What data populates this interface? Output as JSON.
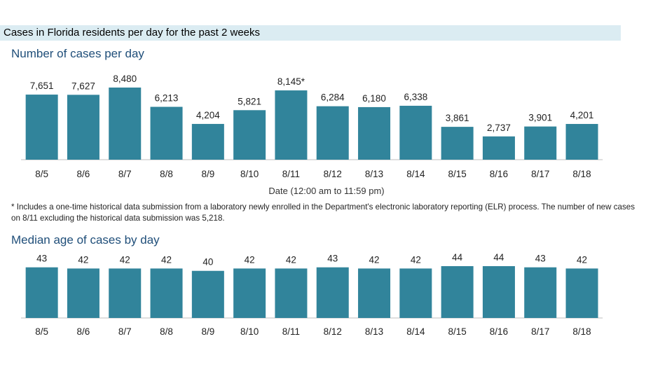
{
  "header": {
    "title": "Cases in Florida residents per day for the past 2 weeks"
  },
  "colors": {
    "bar": "#31849b",
    "header_band": "#dbecf2",
    "section_title": "#1f4e79"
  },
  "footnote": "* Includes a one-time historical data submission from a laboratory newly enrolled in the Department's electronic laboratory reporting (ELR) process. The number of new cases on 8/11 excluding the historical data submission was 5,218.",
  "chart_data": [
    {
      "type": "bar",
      "title": "Number of cases per day",
      "xlabel": "Date (12:00 am to 11:59 pm)",
      "ylabel": "",
      "categories": [
        "8/5",
        "8/6",
        "8/7",
        "8/8",
        "8/9",
        "8/10",
        "8/11",
        "8/12",
        "8/13",
        "8/14",
        "8/15",
        "8/16",
        "8/17",
        "8/18"
      ],
      "values": [
        7651,
        7627,
        8480,
        6213,
        4204,
        5821,
        8145,
        6284,
        6180,
        6338,
        3861,
        2737,
        3901,
        4201
      ],
      "value_labels": [
        "7,651",
        "7,627",
        "8,480",
        "6,213",
        "4,204",
        "5,821",
        "8,145*",
        "6,284",
        "6,180",
        "6,338",
        "3,861",
        "2,737",
        "3,901",
        "4,201"
      ],
      "ylim": [
        0,
        8480
      ],
      "grid": false
    },
    {
      "type": "bar",
      "title": "Median age of cases by day",
      "xlabel": "",
      "ylabel": "",
      "categories": [
        "8/5",
        "8/6",
        "8/7",
        "8/8",
        "8/9",
        "8/10",
        "8/11",
        "8/12",
        "8/13",
        "8/14",
        "8/15",
        "8/16",
        "8/17",
        "8/18"
      ],
      "values": [
        43,
        42,
        42,
        42,
        40,
        42,
        42,
        43,
        42,
        42,
        44,
        44,
        43,
        42
      ],
      "value_labels": [
        "43",
        "42",
        "42",
        "42",
        "40",
        "42",
        "42",
        "43",
        "42",
        "42",
        "44",
        "44",
        "43",
        "42"
      ],
      "ylim": [
        0,
        44
      ],
      "grid": false
    }
  ]
}
